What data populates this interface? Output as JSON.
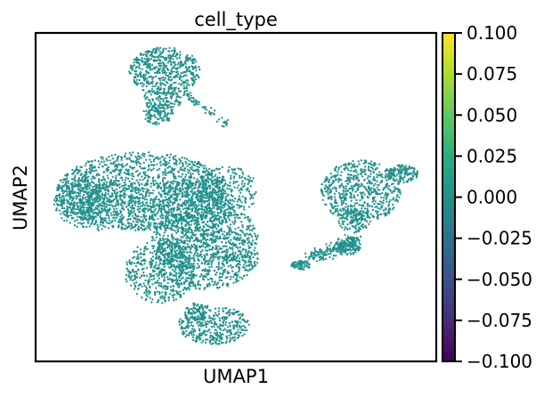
{
  "chart_data": {
    "type": "scatter",
    "title": "cell_type",
    "xlabel": "UMAP1",
    "ylabel": "UMAP2",
    "point_color": "#21918c",
    "grid": false,
    "x_ticks_shown": false,
    "y_ticks_shown": false,
    "colorbar": {
      "colormap": "viridis",
      "range": [
        -0.1,
        0.1
      ],
      "ticks": [
        {
          "value": 0.1,
          "label": "0.100"
        },
        {
          "value": 0.075,
          "label": "0.075"
        },
        {
          "value": 0.05,
          "label": "0.050"
        },
        {
          "value": 0.025,
          "label": "0.025"
        },
        {
          "value": 0.0,
          "label": "0.000"
        },
        {
          "value": -0.025,
          "label": "−0.025"
        },
        {
          "value": -0.05,
          "label": "−0.050"
        },
        {
          "value": -0.075,
          "label": "−0.075"
        },
        {
          "value": -0.1,
          "label": "−0.100"
        }
      ]
    }
  }
}
